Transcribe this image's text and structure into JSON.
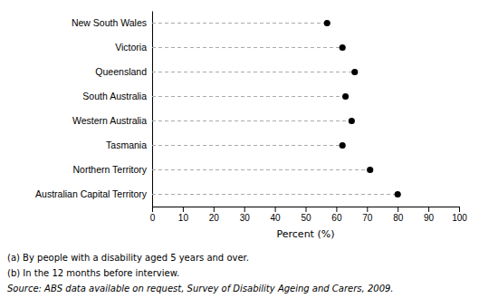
{
  "chart_data": {
    "type": "dot",
    "orientation": "horizontal",
    "categories": [
      "New South Wales",
      "Victoria",
      "Queensland",
      "South Australia",
      "Western Australia",
      "Tasmania",
      "Northern Territory",
      "Australian Capital Territory"
    ],
    "values": [
      57,
      62,
      66,
      63,
      65,
      62,
      71,
      80
    ],
    "color": "#000000",
    "marker": "circle",
    "line_style": "dashed",
    "xlabel": "Percent (%)",
    "xlim": [
      0,
      100
    ],
    "xticks": [
      0,
      10,
      20,
      30,
      40,
      50,
      60,
      70,
      80,
      90,
      100
    ],
    "grid": false,
    "annotations": [
      "(a) By people with a disability aged 5 years and over.",
      "(b) In the 12 months before interview.",
      "Source: ABS data available on request,  Survey of Disability Ageing and Carers,  2009."
    ]
  }
}
